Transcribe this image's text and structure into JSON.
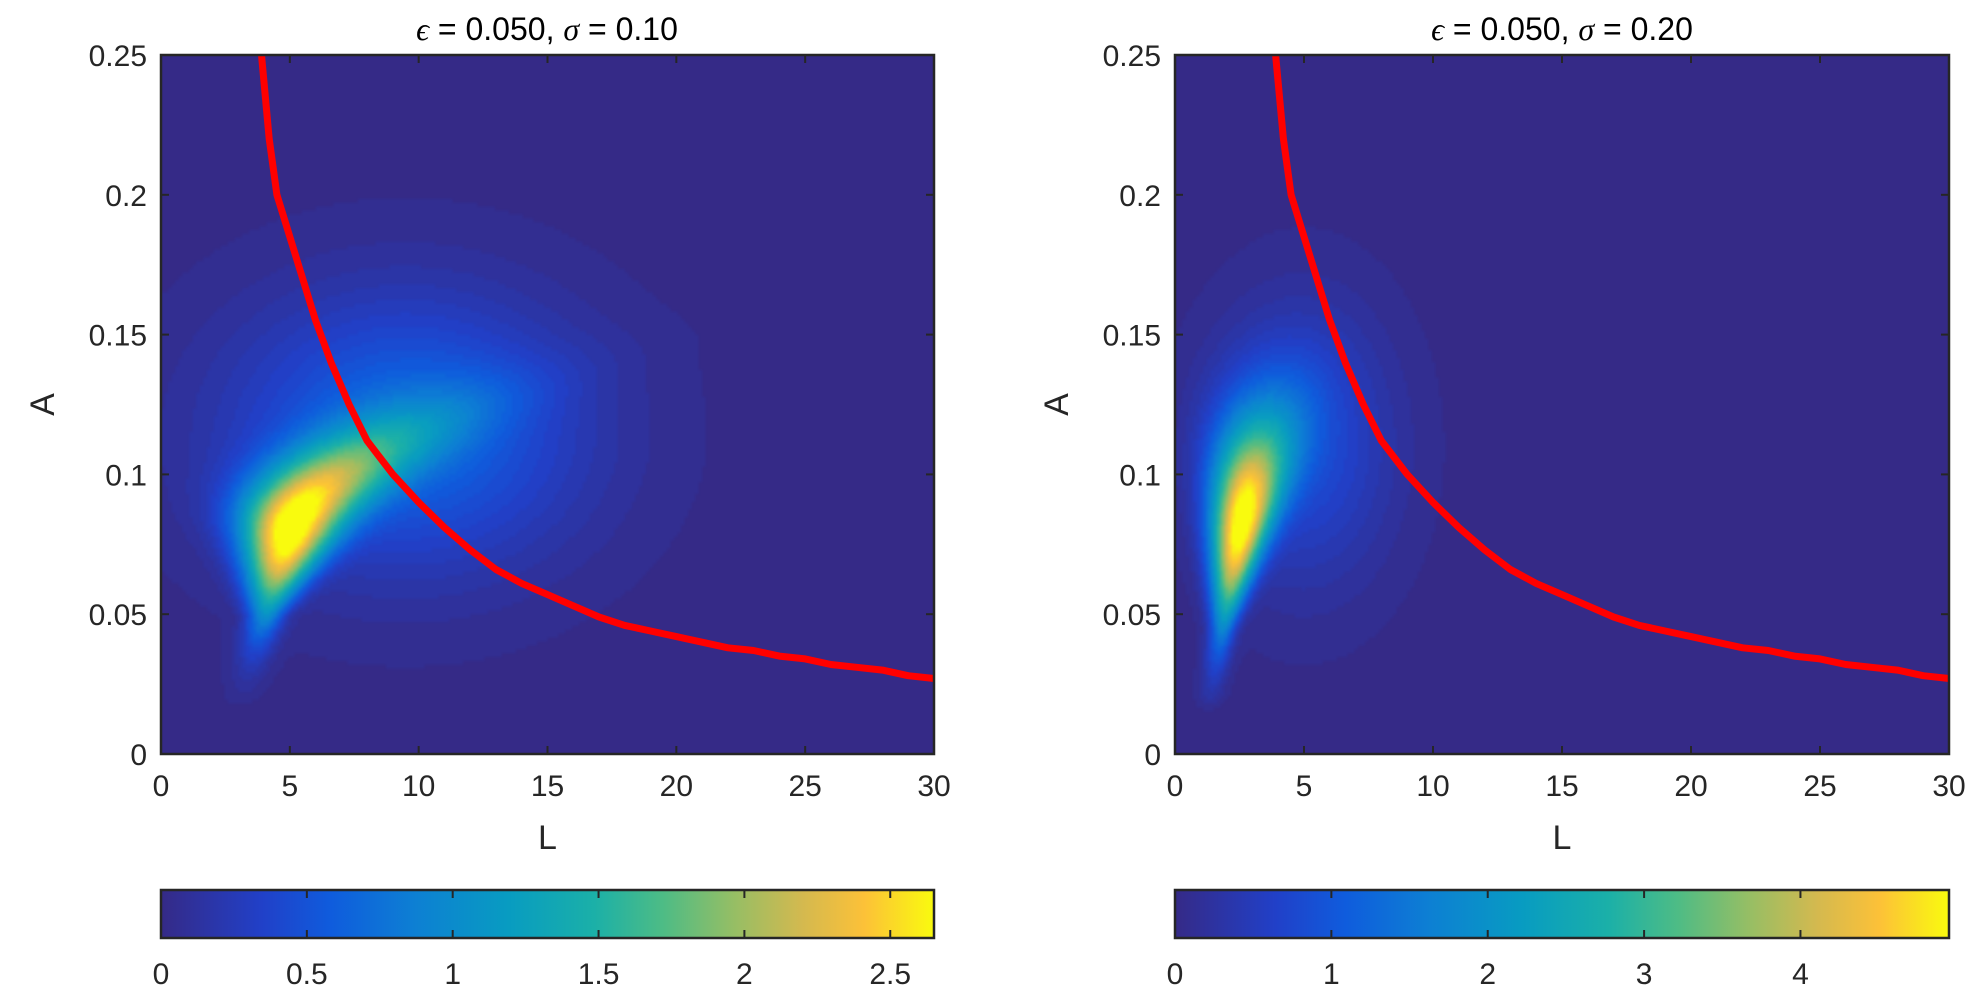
{
  "chart_data": [
    {
      "type": "heatmap",
      "title": {
        "eps_symbol": "ϵ",
        "eps_value": " =  0.050, ",
        "sigma_symbol": "σ",
        "sigma_value": " = 0.10"
      },
      "xlabel": "L",
      "ylabel": "A",
      "xlim": [
        0,
        30
      ],
      "ylim": [
        0,
        0.25
      ],
      "xticks": [
        "0",
        "5",
        "10",
        "15",
        "20",
        "25",
        "30"
      ],
      "yticks": [
        "0",
        "0.05",
        "0.1",
        "0.15",
        "0.2",
        "0.25"
      ],
      "grid": false,
      "colormap": "parula",
      "colorbar": {
        "location": "bottom",
        "range": [
          0,
          2.65
        ],
        "ticks": [
          "0",
          "0.5",
          "1",
          "1.5",
          "2",
          "2.5"
        ],
        "tick_values": [
          0,
          0.5,
          1,
          1.5,
          2,
          2.5
        ]
      },
      "density_peak": {
        "L": 5.2,
        "A": 0.077,
        "value": 2.65
      },
      "curve": {
        "color": "#ff0000",
        "x": [
          3.9,
          4.2,
          4.5,
          5.0,
          5.5,
          6.0,
          6.6,
          7.3,
          8.0,
          9.0,
          10.0,
          11.0,
          12.0,
          13.0,
          14.0,
          15.0,
          16.0,
          17.0,
          18.0,
          19.0,
          20.0,
          21.0,
          22.0,
          23.0,
          24.0,
          25.0,
          26.0,
          27.0,
          28.0,
          29.0,
          30.0
        ],
        "y": [
          0.25,
          0.22,
          0.2,
          0.185,
          0.17,
          0.155,
          0.14,
          0.125,
          0.112,
          0.1,
          0.09,
          0.081,
          0.073,
          0.066,
          0.061,
          0.057,
          0.053,
          0.049,
          0.046,
          0.044,
          0.042,
          0.04,
          0.038,
          0.037,
          0.035,
          0.034,
          0.032,
          0.031,
          0.03,
          0.028,
          0.027
        ]
      }
    },
    {
      "type": "heatmap",
      "title": {
        "eps_symbol": "ϵ",
        "eps_value": " =  0.050, ",
        "sigma_symbol": "σ",
        "sigma_value": " = 0.20"
      },
      "xlabel": "L",
      "ylabel": "A",
      "xlim": [
        0,
        30
      ],
      "ylim": [
        0,
        0.25
      ],
      "xticks": [
        "0",
        "5",
        "10",
        "15",
        "20",
        "25",
        "30"
      ],
      "yticks": [
        "0",
        "0.05",
        "0.1",
        "0.15",
        "0.2",
        "0.25"
      ],
      "grid": false,
      "colormap": "parula",
      "colorbar": {
        "location": "bottom",
        "range": [
          0,
          4.95
        ],
        "ticks": [
          "0",
          "1",
          "2",
          "3",
          "4"
        ],
        "tick_values": [
          0,
          1,
          2,
          3,
          4
        ]
      },
      "density_peak": {
        "L": 2.6,
        "A": 0.082,
        "value": 4.95
      },
      "curve": {
        "color": "#ff0000",
        "x": [
          3.9,
          4.2,
          4.5,
          5.0,
          5.5,
          6.0,
          6.6,
          7.3,
          8.0,
          9.0,
          10.0,
          11.0,
          12.0,
          13.0,
          14.0,
          15.0,
          16.0,
          17.0,
          18.0,
          19.0,
          20.0,
          21.0,
          22.0,
          23.0,
          24.0,
          25.0,
          26.0,
          27.0,
          28.0,
          29.0,
          30.0
        ],
        "y": [
          0.25,
          0.22,
          0.2,
          0.185,
          0.17,
          0.155,
          0.14,
          0.125,
          0.112,
          0.1,
          0.09,
          0.081,
          0.073,
          0.066,
          0.061,
          0.057,
          0.053,
          0.049,
          0.046,
          0.044,
          0.042,
          0.04,
          0.038,
          0.037,
          0.035,
          0.034,
          0.032,
          0.031,
          0.03,
          0.028,
          0.027
        ]
      }
    }
  ],
  "colors": {
    "background": "#352a87",
    "axis": "#262626",
    "curve": "#ff0000"
  }
}
